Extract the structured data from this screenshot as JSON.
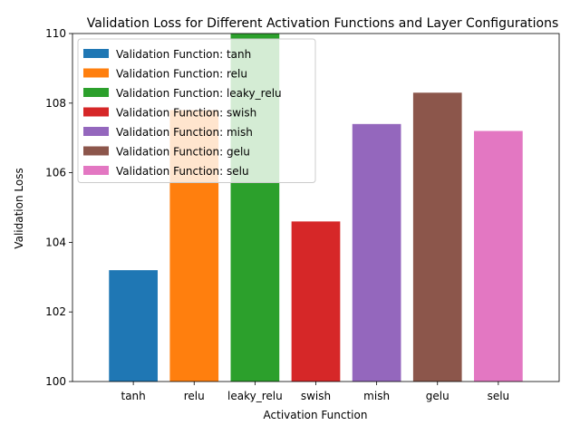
{
  "chart_data": {
    "type": "bar",
    "title": "Validation Loss for Different Activation Functions and Layer Configurations",
    "xlabel": "Activation Function",
    "ylabel": "Validation Loss",
    "ylim": [
      100,
      110
    ],
    "yticks": [
      100,
      102,
      104,
      106,
      108,
      110
    ],
    "categories": [
      "tanh",
      "relu",
      "leaky_relu",
      "swish",
      "mish",
      "gelu",
      "selu"
    ],
    "values": [
      103.2,
      107.8,
      110.5,
      104.6,
      107.4,
      108.3,
      107.2
    ],
    "colors": [
      "#1f77b4",
      "#ff7f0e",
      "#2ca02c",
      "#d62728",
      "#9467bd",
      "#8c564b",
      "#e377c2"
    ],
    "legend_labels": [
      "Validation Function: tanh",
      "Validation Function: relu",
      "Validation Function: leaky_relu",
      "Validation Function: swish",
      "Validation Function: mish",
      "Validation Function: gelu",
      "Validation Function: selu"
    ],
    "legend_position": "top-left",
    "grid": false
  }
}
